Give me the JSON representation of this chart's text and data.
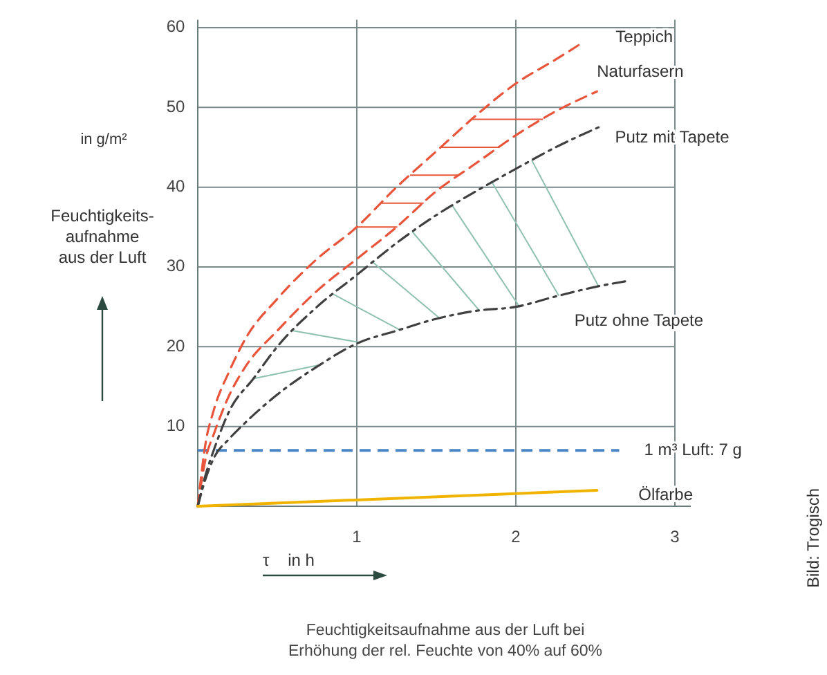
{
  "chart_data": {
    "type": "line",
    "title": "Feuchtigkeitsaufnahme aus der Luft bei\nErhöhung der rel. Feuchte von 40% auf 60%",
    "xlabel": "τ    in h",
    "ylabel": "Feuchtigkeits-\naufnahme\naus der Luft",
    "annotations": [
      "in g/m²",
      "Bild: Trogisch"
    ],
    "xlim": [
      0,
      3.1
    ],
    "ylim": [
      0,
      61
    ],
    "xticks": [
      1,
      2,
      3
    ],
    "yticks": [
      10,
      20,
      30,
      40,
      50,
      60
    ],
    "grid": true,
    "series": [
      {
        "name": "Teppich",
        "color": "#e8553a",
        "line_style": "dashed",
        "x": [
          0,
          0.05,
          0.1,
          0.2,
          0.3,
          0.5,
          0.75,
          1,
          1.25,
          1.5,
          1.75,
          2,
          2.25,
          2.41
        ],
        "values": [
          0,
          8,
          12,
          17,
          21,
          26,
          31,
          35,
          40,
          44.5,
          49,
          53,
          56,
          58
        ]
      },
      {
        "name": "Naturfasern",
        "color": "#e8553a",
        "line_style": "dashed",
        "x": [
          0,
          0.05,
          0.1,
          0.2,
          0.3,
          0.5,
          0.75,
          1,
          1.25,
          1.5,
          1.75,
          2,
          2.25,
          2.51
        ],
        "values": [
          0,
          6,
          9,
          14,
          17.5,
          22,
          27,
          31,
          35,
          39.5,
          43,
          46.5,
          49.5,
          52
        ]
      },
      {
        "name": "Putz mit Tapete",
        "color": "#404040",
        "line_style": "dashdot",
        "x": [
          0,
          0.05,
          0.1,
          0.2,
          0.35,
          0.5,
          0.75,
          1,
          1.25,
          1.5,
          1.75,
          2,
          2.25,
          2.52
        ],
        "values": [
          0,
          4,
          7,
          12,
          16,
          20,
          25,
          29,
          33,
          36.5,
          39.5,
          42.3,
          45,
          47.5
        ]
      },
      {
        "name": "Putz ohne Tapete",
        "color": "#404040",
        "line_style": "dashdot",
        "x": [
          0,
          0.05,
          0.1,
          0.2,
          0.3,
          0.5,
          0.75,
          1,
          1.25,
          1.5,
          1.75,
          2,
          2.25,
          2.5,
          2.69
        ],
        "values": [
          0,
          3.5,
          6,
          8.5,
          10.5,
          14,
          17.5,
          20.4,
          22,
          23.5,
          24.5,
          25,
          26.3,
          27.5,
          28.2
        ]
      },
      {
        "name": "Ölfarbe",
        "color": "#f0b400",
        "line_style": "solid",
        "x": [
          0,
          2.51
        ],
        "values": [
          0,
          2
        ]
      }
    ],
    "ref_lines": [
      {
        "axis": "y",
        "value": 7,
        "label": "1 m³ Luft: 7 g",
        "color": "#4a86c5",
        "line_style": "dashed"
      }
    ]
  }
}
